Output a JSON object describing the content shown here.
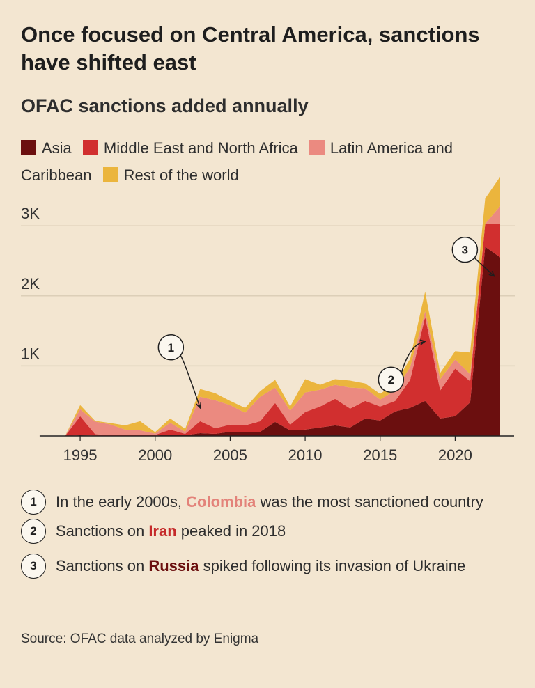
{
  "header": {
    "title": "Once focused on Central America, sanctions have shifted east",
    "subtitle": "OFAC sanctions added annually"
  },
  "legend": [
    {
      "label": "Asia",
      "color": "#6b0f0f"
    },
    {
      "label": "Middle East and North Africa",
      "color": "#d12f2f"
    },
    {
      "label": "Latin America and Caribbean",
      "color": "#eb8a80"
    },
    {
      "label": "Rest of the world",
      "color": "#ebb53d"
    }
  ],
  "chart_data": {
    "type": "area",
    "stacked": true,
    "x": [
      1993,
      1994,
      1995,
      1996,
      1997,
      1998,
      1999,
      2000,
      2001,
      2002,
      2003,
      2004,
      2005,
      2006,
      2007,
      2008,
      2009,
      2010,
      2011,
      2012,
      2013,
      2014,
      2015,
      2016,
      2017,
      2018,
      2019,
      2020,
      2021,
      2022,
      2023
    ],
    "series": [
      {
        "name": "Asia",
        "color": "#6b0f0f",
        "values": [
          0,
          0,
          10,
          5,
          5,
          5,
          5,
          5,
          20,
          10,
          40,
          30,
          60,
          50,
          60,
          200,
          80,
          90,
          120,
          150,
          120,
          250,
          220,
          350,
          400,
          500,
          250,
          280,
          480,
          2700,
          2550
        ]
      },
      {
        "name": "Middle East and North Africa",
        "color": "#d12f2f",
        "values": [
          0,
          0,
          270,
          20,
          10,
          5,
          15,
          10,
          70,
          20,
          170,
          80,
          100,
          100,
          150,
          270,
          80,
          250,
          300,
          380,
          270,
          250,
          200,
          150,
          400,
          1200,
          400,
          680,
          300,
          330,
          480
        ]
      },
      {
        "name": "Latin America and Caribbean",
        "color": "#eb8a80",
        "values": [
          0,
          0,
          100,
          180,
          150,
          80,
          60,
          20,
          100,
          30,
          350,
          400,
          280,
          180,
          350,
          220,
          200,
          280,
          240,
          200,
          300,
          180,
          100,
          150,
          180,
          80,
          160,
          130,
          100,
          0,
          250
        ]
      },
      {
        "name": "Rest of the world",
        "color": "#ebb53d",
        "values": [
          0,
          0,
          60,
          10,
          20,
          60,
          130,
          20,
          60,
          40,
          110,
          100,
          60,
          70,
          80,
          110,
          60,
          190,
          70,
          80,
          100,
          70,
          80,
          100,
          120,
          280,
          90,
          120,
          310,
          360,
          420
        ]
      }
    ],
    "ylim": [
      0,
      3700
    ],
    "y_ticks": [
      {
        "value": 1000,
        "label": "1K"
      },
      {
        "value": 2000,
        "label": "2K"
      },
      {
        "value": 3000,
        "label": "3K"
      }
    ],
    "x_ticks": [
      1995,
      2000,
      2005,
      2010,
      2015,
      2020
    ],
    "grid": true,
    "annotations": [
      {
        "num": "1",
        "year": 2003,
        "value": 400
      },
      {
        "num": "2",
        "year": 2018,
        "value": 1350
      },
      {
        "num": "3",
        "year": 2022.6,
        "value": 2280
      }
    ]
  },
  "notes": [
    {
      "num": "1",
      "before": "In the early 2000s, ",
      "highlight": "Colombia",
      "after": " was the most sanctioned country",
      "color": "#e3837a"
    },
    {
      "num": "2",
      "before": "Sanctions on ",
      "highlight": "Iran",
      "after": " peaked in 2018",
      "color": "#c52a2a"
    },
    {
      "num": "3",
      "before": "Sanctions on ",
      "highlight": "Russia",
      "after": " spiked following its invasion of Ukraine",
      "color": "#6b0f0f"
    }
  ],
  "source": "Source: OFAC data analyzed by Enigma"
}
